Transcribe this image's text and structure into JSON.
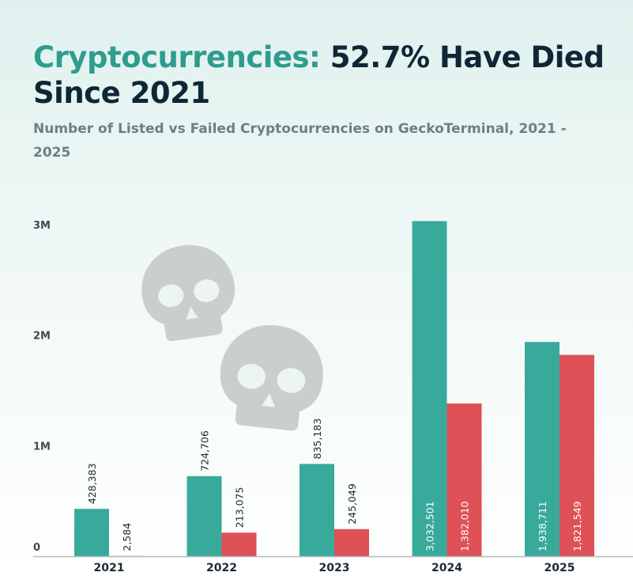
{
  "header": {
    "title_highlight": "Cryptocurrencies:",
    "title_rest": " 52.7% Have Died Since 2021",
    "subtitle": "Number of Listed vs Failed Cryptocurrencies on GeckoTerminal, 2021 - 2025"
  },
  "colors": {
    "listed": "#38aa9c",
    "failed": "#de5156",
    "skull": "#c9cfcd",
    "baseline": "#b8bdbb"
  },
  "decoration": {
    "icon": "skull-icon"
  },
  "chart_data": {
    "type": "bar",
    "title": "Cryptocurrencies: 52.7% Have Died Since 2021",
    "subtitle": "Number of Listed vs Failed Cryptocurrencies on GeckoTerminal, 2021 - 2025",
    "categories": [
      "2021",
      "2022",
      "2023",
      "2024",
      "2025"
    ],
    "series": [
      {
        "values": [
          428383,
          724706,
          835183,
          3032501,
          1938711
        ],
        "labels": [
          "428,383",
          "724,706",
          "835,183",
          "3,032,501",
          "1,938,711"
        ]
      },
      {
        "values": [
          2584,
          213075,
          245049,
          1382010,
          1821549
        ],
        "labels": [
          "2,584",
          "213,075",
          "245,049",
          "1,382,010",
          "1,821,549"
        ]
      }
    ],
    "ylim": [
      0,
      3000000
    ],
    "yticks": [
      {
        "value": 0,
        "label": "0"
      },
      {
        "value": 1000000,
        "label": "1M"
      },
      {
        "value": 2000000,
        "label": "2M"
      },
      {
        "value": 3000000,
        "label": "3M"
      }
    ],
    "grid": false,
    "legend": "none"
  }
}
